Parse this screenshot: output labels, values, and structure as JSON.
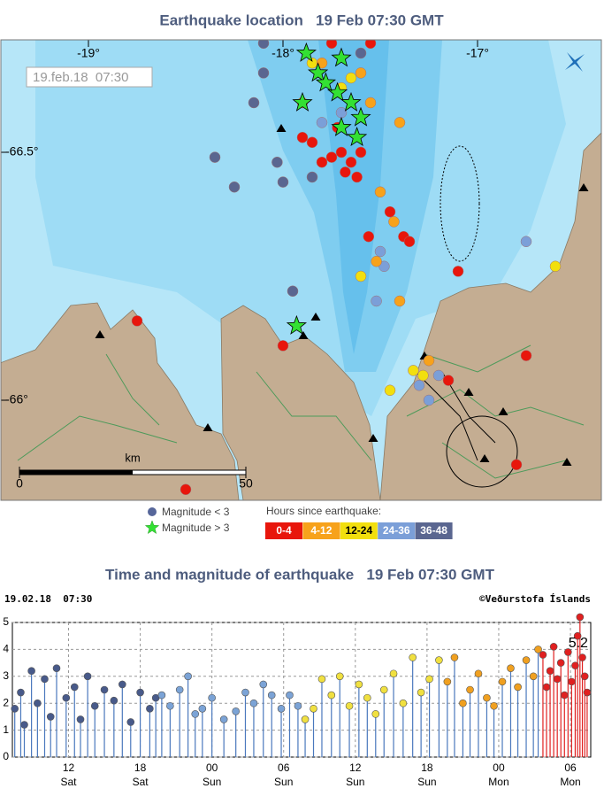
{
  "map": {
    "title": "Earthquake location   19 Feb 07:30 GMT",
    "timestamp": "19.feb.18  07:30",
    "lon_ticks": [
      {
        "value": -19,
        "label": "-19°"
      },
      {
        "value": -18,
        "label": "-18°"
      },
      {
        "value": -17,
        "label": "-17°"
      }
    ],
    "lat_ticks": [
      {
        "value": -66.5,
        "label": "-66.5°"
      },
      {
        "value": -66,
        "label": "-66°"
      }
    ],
    "scale_bar": {
      "unit": "km",
      "ticks": [
        0,
        50
      ]
    },
    "legend": {
      "small": {
        "label": "Magnitude < 3",
        "color": "#56669a"
      },
      "large": {
        "label": "Magnitude > 3",
        "color": "#33e033"
      },
      "age_title": "Hours since earthquake:",
      "bins": [
        {
          "label": "0-4",
          "color": "#e8160c",
          "text_color": "#ffffff",
          "lon": [
            -17.8,
            -17.75,
            -17.7,
            -17.65,
            -17.6,
            -17.85,
            -17.72,
            -17.62,
            -17.45,
            -17.38,
            -17.35,
            -17.56,
            -17.1,
            -17.15,
            -16.75,
            -16.8,
            -18.75,
            -18.0,
            -18.5,
            -17.75,
            -17.55,
            -17.68,
            -17.9
          ],
          "lat": [
            -66.48,
            -66.49,
            -66.5,
            -66.48,
            -66.5,
            -66.52,
            -66.55,
            -66.45,
            -66.38,
            -66.33,
            -66.32,
            -66.33,
            -66.26,
            -66.04,
            -66.09,
            -65.87,
            -66.16,
            -66.11,
            -65.82,
            -66.72,
            -66.72,
            -66.46,
            -66.53
          ]
        },
        {
          "label": "4-12",
          "color": "#f7a21b",
          "text_color": "#ffffff",
          "lon": [
            -17.9,
            -17.55,
            -17.4,
            -17.5,
            -17.43,
            -17.52,
            -17.4,
            -17.25,
            -17.6,
            -17.8
          ],
          "lat": [
            -66.6,
            -66.6,
            -66.56,
            -66.42,
            -66.36,
            -66.28,
            -66.2,
            -66.08,
            -66.66,
            -66.68
          ]
        },
        {
          "label": "12-24",
          "color": "#f2df0e",
          "text_color": "#000000",
          "lon": [
            -17.85,
            -17.65,
            -17.7,
            -17.6,
            -16.6,
            -17.28,
            -17.45,
            -17.33
          ],
          "lat": [
            -66.68,
            -66.65,
            -66.63,
            -66.25,
            -66.27,
            -66.05,
            -66.02,
            -66.06
          ]
        },
        {
          "label": "24-36",
          "color": "#7b9fd8",
          "text_color": "#ffffff",
          "lon": [
            -17.5,
            -17.48,
            -17.3,
            -17.2,
            -17.25,
            -16.75,
            -17.52,
            -17.8,
            -17.7
          ],
          "lat": [
            -66.3,
            -66.27,
            -66.03,
            -66.05,
            -66.0,
            -66.32,
            -66.2,
            -66.56,
            -66.58
          ]
        },
        {
          "label": "36-48",
          "color": "#5a6690",
          "text_color": "#ffffff",
          "lon": [
            -18.1,
            -18.15,
            -18.35,
            -18.25,
            -18.0,
            -18.03,
            -17.95,
            -18.1,
            -17.85,
            -17.6
          ],
          "lat": [
            -66.72,
            -66.6,
            -66.49,
            -66.43,
            -66.44,
            -66.48,
            -66.22,
            -66.66,
            -66.45,
            -66.7
          ]
        }
      ]
    },
    "large_quakes": {
      "lon": [
        -17.88,
        -17.7,
        -17.82,
        -17.72,
        -17.65,
        -17.6,
        -17.7,
        -17.62,
        -17.9,
        -17.93,
        -17.78
      ],
      "lat": [
        -66.7,
        -66.69,
        -66.66,
        -66.62,
        -66.6,
        -66.57,
        -66.55,
        -66.53,
        -66.6,
        -66.15,
        -66.64
      ]
    }
  },
  "chart_data": {
    "type": "stem",
    "title": "Time and magnitude of earthquake   19 Feb 07:30 GMT",
    "timestamp": "19.02.18  07:30",
    "credit": "©Veðurstofa Íslands",
    "xlim": [
      7.3,
      55.7
    ],
    "ylim": [
      0,
      5
    ],
    "yticks": [
      0,
      1,
      2,
      3,
      4,
      5
    ],
    "xticks": [
      {
        "value": 12,
        "label": "12",
        "day": "Sat"
      },
      {
        "value": 18,
        "label": "18",
        "day": "Sat"
      },
      {
        "value": 24,
        "label": "00",
        "day": "Sun"
      },
      {
        "value": 30,
        "label": "06",
        "day": "Sun"
      },
      {
        "value": 36,
        "label": "12",
        "day": "Sun"
      },
      {
        "value": 42,
        "label": "18",
        "day": "Sun"
      },
      {
        "value": 48,
        "label": "00",
        "day": "Mon"
      },
      {
        "value": 54,
        "label": "06",
        "day": "Mon"
      }
    ],
    "grid": true,
    "stem_color": "#4a78bd",
    "series": [
      {
        "color": "#485a8a",
        "x": [
          7.5,
          8.0,
          8.3,
          8.9,
          9.4,
          10.0,
          10.5,
          11.0,
          11.8,
          12.5,
          13.0,
          13.6,
          14.2,
          15.0,
          15.8,
          16.5,
          17.2,
          18.0,
          18.8,
          19.3
        ],
        "values": [
          1.8,
          2.4,
          1.2,
          3.2,
          2.0,
          2.9,
          1.5,
          3.3,
          2.2,
          2.6,
          1.4,
          3.0,
          1.9,
          2.5,
          2.1,
          2.7,
          1.3,
          2.4,
          1.8,
          2.2
        ]
      },
      {
        "color": "#7ba3d6",
        "x": [
          19.8,
          20.5,
          21.3,
          22.0,
          22.6,
          23.2,
          24.0,
          25.0,
          26.0,
          26.8,
          27.5,
          28.3,
          29.0,
          29.8,
          30.5,
          31.2
        ],
        "values": [
          2.3,
          1.9,
          2.5,
          3.0,
          1.6,
          1.8,
          2.2,
          1.4,
          1.7,
          2.4,
          2.0,
          2.7,
          2.3,
          1.8,
          2.3,
          1.9
        ]
      },
      {
        "color": "#f0e040",
        "x": [
          31.8,
          32.5,
          33.2,
          34.0,
          34.7,
          35.5,
          36.3,
          37.0,
          37.7,
          38.4,
          39.2,
          40.0,
          40.8,
          41.5,
          42.2,
          43.0
        ],
        "values": [
          1.4,
          1.8,
          2.9,
          2.3,
          3.0,
          1.9,
          2.7,
          2.2,
          1.6,
          2.5,
          3.1,
          2.0,
          3.7,
          2.4,
          2.9,
          3.6
        ]
      },
      {
        "color": "#f0a020",
        "x": [
          43.7,
          44.3,
          45.0,
          45.6,
          46.3,
          47.0,
          47.6,
          48.3,
          49.0,
          49.6,
          50.3,
          50.9,
          51.3
        ],
        "values": [
          2.8,
          3.7,
          2.0,
          2.5,
          3.1,
          2.2,
          1.9,
          2.8,
          3.3,
          2.6,
          3.6,
          3.0,
          4.0
        ]
      },
      {
        "color": "#e02020",
        "x": [
          51.7,
          52.0,
          52.3,
          52.6,
          52.9,
          53.2,
          53.5,
          53.8,
          54.1,
          54.4,
          54.6,
          54.8,
          55.0,
          55.2,
          55.4
        ],
        "values": [
          3.8,
          2.6,
          3.2,
          4.1,
          2.9,
          3.5,
          2.3,
          3.9,
          2.8,
          3.4,
          4.5,
          5.2,
          3.7,
          3.0,
          2.4
        ]
      }
    ],
    "annotations": [
      {
        "x": 54.8,
        "y": 5.2,
        "text": "5.2"
      }
    ]
  }
}
